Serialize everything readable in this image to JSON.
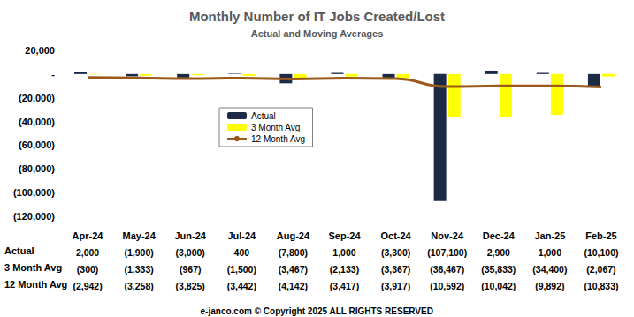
{
  "chart_data": {
    "type": "bar",
    "title": "Monthly Number of IT Jobs Created/Lost",
    "subtitle": "Actual and Moving Averages",
    "footer": "e-janco.com © Copyright 2025 ALL RIGHTS RESERVED",
    "categories": [
      "Apr-24",
      "May-24",
      "Jun-24",
      "Jul-24",
      "Aug-24",
      "Sep-24",
      "Oct-24",
      "Nov-24",
      "Dec-24",
      "Jan-25",
      "Feb-25"
    ],
    "series": [
      {
        "name": "Actual",
        "type": "bar",
        "color": "#1b2a45",
        "values": [
          2000,
          -1900,
          -3000,
          400,
          -7800,
          1000,
          -3300,
          -107100,
          2900,
          1000,
          -10100
        ],
        "value_labels": [
          "2,000",
          "(1,900)",
          "(3,000)",
          "400",
          "(7,800)",
          "1,000",
          "(3,300)",
          "(107,100)",
          "2,900",
          "1,000",
          "(10,100)"
        ]
      },
      {
        "name": "3 Month Avg",
        "type": "bar",
        "color": "#ffff00",
        "values": [
          -300,
          -1333,
          -967,
          -1500,
          -3467,
          -2133,
          -3367,
          -36467,
          -35833,
          -34400,
          -2067
        ],
        "value_labels": [
          "(300)",
          "(1,333)",
          "(967)",
          "(1,500)",
          "(3,467)",
          "(2,133)",
          "(3,367)",
          "(36,467)",
          "(35,833)",
          "(34,400)",
          "(2,067)"
        ]
      },
      {
        "name": "12 Month Avg",
        "type": "line",
        "color": "#9a5a1c",
        "line_style": "solid",
        "marker": "none",
        "values": [
          -2942,
          -3258,
          -3825,
          -3442,
          -4142,
          -3417,
          -3917,
          -10592,
          -10042,
          -9892,
          -10833
        ],
        "value_labels": [
          "(2,942)",
          "(3,258)",
          "(3,825)",
          "(3,442)",
          "(4,142)",
          "(3,417)",
          "(3,917)",
          "(10,592)",
          "(10,042)",
          "(9,892)",
          "(10,833)"
        ]
      }
    ],
    "ylim": [
      -120000,
      20000
    ],
    "yticks": [
      {
        "value": -120000,
        "label": "(120,000)"
      },
      {
        "value": -100000,
        "label": "(100,000)"
      },
      {
        "value": -80000,
        "label": "(80,000)"
      },
      {
        "value": -60000,
        "label": "(60,000)"
      },
      {
        "value": -40000,
        "label": "(40,000)"
      },
      {
        "value": -20000,
        "label": "(20,000)"
      },
      {
        "value": 0,
        "label": "-"
      },
      {
        "value": 20000,
        "label": "20,000"
      }
    ],
    "grid": false,
    "legend": "center"
  }
}
